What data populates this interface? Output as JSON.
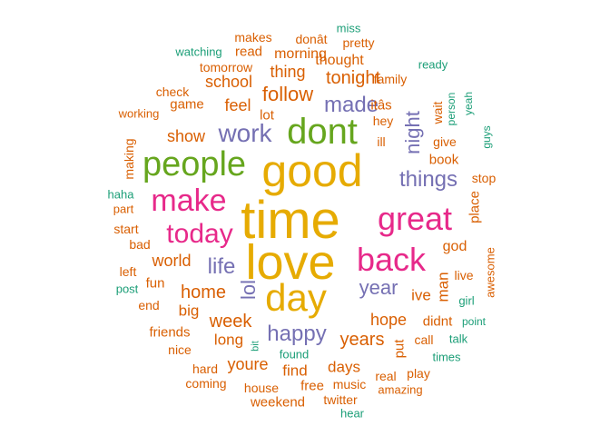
{
  "colors": {
    "teal": "#1b9e77",
    "orange": "#d95f02",
    "purple": "#7570b3",
    "magenta": "#e7298a",
    "green": "#66a61e",
    "gold": "#e6ab02"
  },
  "words": [
    {
      "id": "time",
      "text": "time",
      "color": "gold",
      "vertical": false
    },
    {
      "id": "love",
      "text": "love",
      "color": "gold",
      "vertical": false
    },
    {
      "id": "good",
      "text": "good",
      "color": "gold",
      "vertical": false
    },
    {
      "id": "day",
      "text": "day",
      "color": "gold",
      "vertical": false
    },
    {
      "id": "dont",
      "text": "dont",
      "color": "green",
      "vertical": false
    },
    {
      "id": "people",
      "text": "people",
      "color": "green",
      "vertical": false
    },
    {
      "id": "great",
      "text": "great",
      "color": "magenta",
      "vertical": false
    },
    {
      "id": "back",
      "text": "back",
      "color": "magenta",
      "vertical": false
    },
    {
      "id": "make",
      "text": "make",
      "color": "magenta",
      "vertical": false
    },
    {
      "id": "today",
      "text": "today",
      "color": "magenta",
      "vertical": false
    },
    {
      "id": "work",
      "text": "work",
      "color": "purple",
      "vertical": false
    },
    {
      "id": "things",
      "text": "things",
      "color": "purple",
      "vertical": false
    },
    {
      "id": "night",
      "text": "night",
      "color": "purple",
      "vertical": true
    },
    {
      "id": "made",
      "text": "made",
      "color": "purple",
      "vertical": false
    },
    {
      "id": "life",
      "text": "life",
      "color": "purple",
      "vertical": false
    },
    {
      "id": "year",
      "text": "year",
      "color": "purple",
      "vertical": false
    },
    {
      "id": "lol",
      "text": "lol",
      "color": "purple",
      "vertical": true
    },
    {
      "id": "happy",
      "text": "happy",
      "color": "purple",
      "vertical": false
    },
    {
      "id": "follow",
      "text": "follow",
      "color": "orange",
      "vertical": false
    },
    {
      "id": "tonight",
      "text": "tonight",
      "color": "orange",
      "vertical": false
    },
    {
      "id": "feel",
      "text": "feel",
      "color": "orange",
      "vertical": false
    },
    {
      "id": "show",
      "text": "show",
      "color": "orange",
      "vertical": false
    },
    {
      "id": "school",
      "text": "school",
      "color": "orange",
      "vertical": false
    },
    {
      "id": "thing",
      "text": "thing",
      "color": "orange",
      "vertical": false
    },
    {
      "id": "morning",
      "text": "morning",
      "color": "orange",
      "vertical": false
    },
    {
      "id": "thought",
      "text": "thought",
      "color": "orange",
      "vertical": false
    },
    {
      "id": "tomorrow",
      "text": "tomorrow",
      "color": "orange",
      "vertical": false
    },
    {
      "id": "makes",
      "text": "makes",
      "color": "orange",
      "vertical": false
    },
    {
      "id": "read",
      "text": "read",
      "color": "orange",
      "vertical": false
    },
    {
      "id": "dont_enc",
      "text": "donât",
      "color": "orange",
      "vertical": false
    },
    {
      "id": "pretty",
      "text": "pretty",
      "color": "orange",
      "vertical": false
    },
    {
      "id": "miss",
      "text": "miss",
      "color": "teal",
      "vertical": false
    },
    {
      "id": "watching",
      "text": "watching",
      "color": "teal",
      "vertical": false
    },
    {
      "id": "family",
      "text": "family",
      "color": "orange",
      "vertical": false
    },
    {
      "id": "ready",
      "text": "ready",
      "color": "teal",
      "vertical": false
    },
    {
      "id": "its_enc",
      "text": "itâs",
      "color": "orange",
      "vertical": false
    },
    {
      "id": "hey",
      "text": "hey",
      "color": "orange",
      "vertical": false
    },
    {
      "id": "ill",
      "text": "ill",
      "color": "orange",
      "vertical": false
    },
    {
      "id": "wait",
      "text": "wait",
      "color": "orange",
      "vertical": true
    },
    {
      "id": "person",
      "text": "person",
      "color": "teal",
      "vertical": true
    },
    {
      "id": "yeah",
      "text": "yeah",
      "color": "teal",
      "vertical": true
    },
    {
      "id": "guys",
      "text": "guys",
      "color": "teal",
      "vertical": true
    },
    {
      "id": "give",
      "text": "give",
      "color": "orange",
      "vertical": false
    },
    {
      "id": "book",
      "text": "book",
      "color": "orange",
      "vertical": false
    },
    {
      "id": "stop",
      "text": "stop",
      "color": "orange",
      "vertical": false
    },
    {
      "id": "place",
      "text": "place",
      "color": "orange",
      "vertical": true
    },
    {
      "id": "check",
      "text": "check",
      "color": "orange",
      "vertical": false
    },
    {
      "id": "game",
      "text": "game",
      "color": "orange",
      "vertical": false
    },
    {
      "id": "working",
      "text": "working",
      "color": "orange",
      "vertical": false
    },
    {
      "id": "lot",
      "text": "lot",
      "color": "orange",
      "vertical": false
    },
    {
      "id": "making",
      "text": "making",
      "color": "orange",
      "vertical": true
    },
    {
      "id": "haha",
      "text": "haha",
      "color": "teal",
      "vertical": false
    },
    {
      "id": "part",
      "text": "part",
      "color": "orange",
      "vertical": false
    },
    {
      "id": "start",
      "text": "start",
      "color": "orange",
      "vertical": false
    },
    {
      "id": "bad",
      "text": "bad",
      "color": "orange",
      "vertical": false
    },
    {
      "id": "left",
      "text": "left",
      "color": "orange",
      "vertical": false
    },
    {
      "id": "post",
      "text": "post",
      "color": "teal",
      "vertical": false
    },
    {
      "id": "fun",
      "text": "fun",
      "color": "orange",
      "vertical": false
    },
    {
      "id": "end",
      "text": "end",
      "color": "orange",
      "vertical": false
    },
    {
      "id": "world",
      "text": "world",
      "color": "orange",
      "vertical": false
    },
    {
      "id": "home",
      "text": "home",
      "color": "orange",
      "vertical": false
    },
    {
      "id": "big",
      "text": "big",
      "color": "orange",
      "vertical": false
    },
    {
      "id": "week",
      "text": "week",
      "color": "orange",
      "vertical": false
    },
    {
      "id": "friends",
      "text": "friends",
      "color": "orange",
      "vertical": false
    },
    {
      "id": "long",
      "text": "long",
      "color": "orange",
      "vertical": false
    },
    {
      "id": "nice",
      "text": "nice",
      "color": "orange",
      "vertical": false
    },
    {
      "id": "bit",
      "text": "bit",
      "color": "teal",
      "vertical": true
    },
    {
      "id": "youre",
      "text": "youre",
      "color": "orange",
      "vertical": false
    },
    {
      "id": "hard",
      "text": "hard",
      "color": "orange",
      "vertical": false
    },
    {
      "id": "coming",
      "text": "coming",
      "color": "orange",
      "vertical": false
    },
    {
      "id": "house",
      "text": "house",
      "color": "orange",
      "vertical": false
    },
    {
      "id": "weekend",
      "text": "weekend",
      "color": "orange",
      "vertical": false
    },
    {
      "id": "found",
      "text": "found",
      "color": "teal",
      "vertical": false
    },
    {
      "id": "find",
      "text": "find",
      "color": "orange",
      "vertical": false
    },
    {
      "id": "free",
      "text": "free",
      "color": "orange",
      "vertical": false
    },
    {
      "id": "twitter",
      "text": "twitter",
      "color": "orange",
      "vertical": false
    },
    {
      "id": "hear",
      "text": "hear",
      "color": "teal",
      "vertical": false
    },
    {
      "id": "years",
      "text": "years",
      "color": "orange",
      "vertical": false
    },
    {
      "id": "days",
      "text": "days",
      "color": "orange",
      "vertical": false
    },
    {
      "id": "music",
      "text": "music",
      "color": "orange",
      "vertical": false
    },
    {
      "id": "real",
      "text": "real",
      "color": "orange",
      "vertical": false
    },
    {
      "id": "play",
      "text": "play",
      "color": "orange",
      "vertical": false
    },
    {
      "id": "amazing",
      "text": "amazing",
      "color": "orange",
      "vertical": false
    },
    {
      "id": "put",
      "text": "put",
      "color": "orange",
      "vertical": true
    },
    {
      "id": "call",
      "text": "call",
      "color": "orange",
      "vertical": false
    },
    {
      "id": "talk",
      "text": "talk",
      "color": "teal",
      "vertical": false
    },
    {
      "id": "times",
      "text": "times",
      "color": "teal",
      "vertical": false
    },
    {
      "id": "hope",
      "text": "hope",
      "color": "orange",
      "vertical": false
    },
    {
      "id": "didnt",
      "text": "didnt",
      "color": "orange",
      "vertical": false
    },
    {
      "id": "point",
      "text": "point",
      "color": "teal",
      "vertical": false
    },
    {
      "id": "ive",
      "text": "ive",
      "color": "orange",
      "vertical": false
    },
    {
      "id": "man",
      "text": "man",
      "color": "orange",
      "vertical": true
    },
    {
      "id": "god",
      "text": "god",
      "color": "orange",
      "vertical": false
    },
    {
      "id": "live",
      "text": "live",
      "color": "orange",
      "vertical": false
    },
    {
      "id": "girl",
      "text": "girl",
      "color": "teal",
      "vertical": false
    },
    {
      "id": "awesome",
      "text": "awesome",
      "color": "orange",
      "vertical": true
    }
  ]
}
